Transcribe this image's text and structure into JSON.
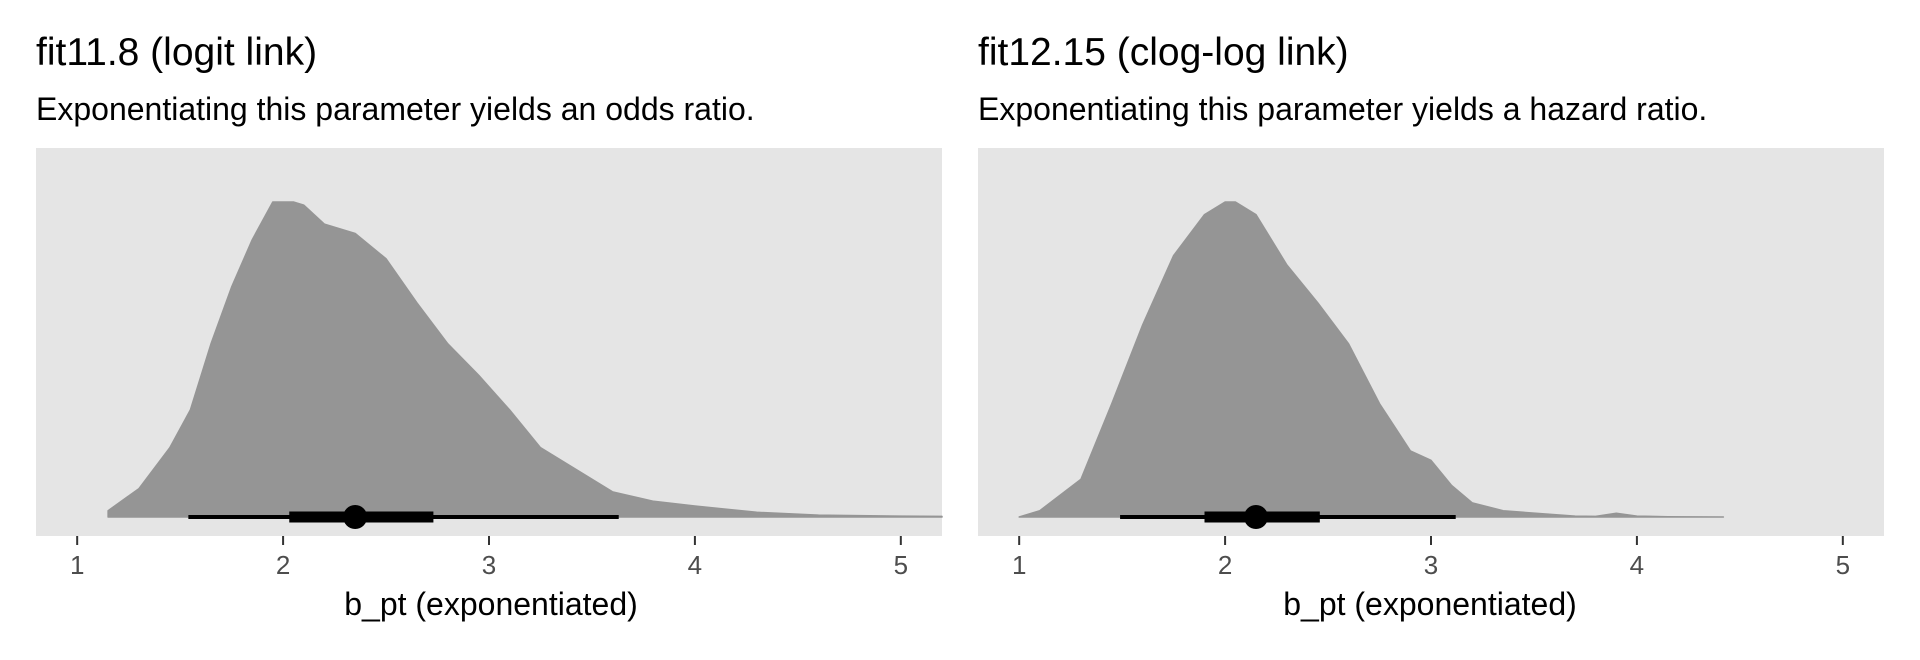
{
  "chart_data": [
    {
      "type": "area",
      "title": "fit11.8 (logit link)",
      "subtitle": "Exponentiating this parameter yields an odds ratio.",
      "xlabel": "b_pt (exponentiated)",
      "ylabel": "",
      "xlim": [
        0.8,
        5.2
      ],
      "x_ticks": [
        "1",
        "2",
        "3",
        "4",
        "5"
      ],
      "grid": false,
      "density": {
        "x": [
          1.15,
          1.3,
          1.45,
          1.55,
          1.65,
          1.75,
          1.85,
          1.95,
          2.05,
          2.1,
          2.2,
          2.35,
          2.5,
          2.65,
          2.8,
          2.95,
          3.1,
          3.25,
          3.45,
          3.6,
          3.8,
          4.0,
          4.3,
          4.6,
          5.0,
          5.2
        ],
        "y": [
          0.02,
          0.09,
          0.22,
          0.34,
          0.55,
          0.73,
          0.88,
          1.0,
          1.0,
          0.99,
          0.93,
          0.9,
          0.82,
          0.68,
          0.55,
          0.45,
          0.34,
          0.22,
          0.14,
          0.08,
          0.05,
          0.035,
          0.015,
          0.006,
          0.003,
          0.002
        ]
      },
      "point_interval": {
        "point": 2.35,
        "inner_interval": [
          2.03,
          2.73
        ],
        "outer_interval": [
          1.54,
          3.63
        ]
      }
    },
    {
      "type": "area",
      "title": "fit12.15 (clog-log link)",
      "subtitle": "Exponentiating this parameter yields a hazard ratio.",
      "xlabel": "b_pt (exponentiated)",
      "ylabel": "",
      "xlim": [
        0.8,
        5.2
      ],
      "x_ticks": [
        "1",
        "2",
        "3",
        "4",
        "5"
      ],
      "grid": false,
      "density": {
        "x": [
          1.0,
          1.1,
          1.3,
          1.45,
          1.6,
          1.75,
          1.9,
          2.0,
          2.05,
          2.15,
          2.3,
          2.45,
          2.6,
          2.75,
          2.9,
          3.0,
          3.1,
          3.2,
          3.35,
          3.55,
          3.7,
          3.8,
          3.9,
          4.0,
          4.15,
          4.42
        ],
        "y": [
          0.0,
          0.02,
          0.12,
          0.36,
          0.61,
          0.83,
          0.96,
          1.0,
          1.0,
          0.96,
          0.8,
          0.68,
          0.55,
          0.36,
          0.21,
          0.18,
          0.1,
          0.045,
          0.02,
          0.01,
          0.003,
          0.002,
          0.012,
          0.003,
          0.001,
          0.0
        ]
      },
      "point_interval": {
        "point": 2.15,
        "inner_interval": [
          1.9,
          2.46
        ],
        "outer_interval": [
          1.49,
          3.12
        ]
      }
    }
  ]
}
